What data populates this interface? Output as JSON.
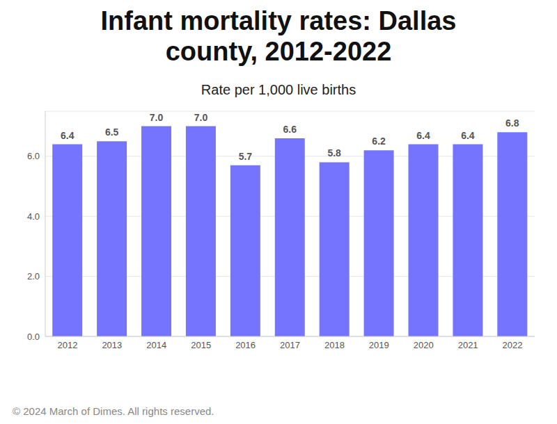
{
  "chart_data": {
    "type": "bar",
    "title": "Infant mortality rates: Dallas county, 2012-2022",
    "subtitle": "Rate per 1,000 live births",
    "footer": "© 2024 March of Dimes. All rights reserved.",
    "categories": [
      "2012",
      "2013",
      "2014",
      "2015",
      "2016",
      "2017",
      "2018",
      "2019",
      "2020",
      "2021",
      "2022"
    ],
    "values": [
      6.4,
      6.5,
      7.0,
      7.0,
      5.7,
      6.6,
      5.8,
      6.2,
      6.4,
      6.4,
      6.8
    ],
    "value_labels": [
      "6.4",
      "6.5",
      "7.0",
      "7.0",
      "5.7",
      "6.6",
      "5.8",
      "6.2",
      "6.4",
      "6.4",
      "6.8"
    ],
    "data_labels": true,
    "color": "#7474ff",
    "ylim": [
      0,
      7.5
    ],
    "yticks": [
      {
        "value": 0,
        "label": "0.0"
      },
      {
        "value": 2,
        "label": "2.0"
      },
      {
        "value": 4,
        "label": "4.0"
      },
      {
        "value": 6,
        "label": "6.0"
      }
    ],
    "grid": true
  }
}
